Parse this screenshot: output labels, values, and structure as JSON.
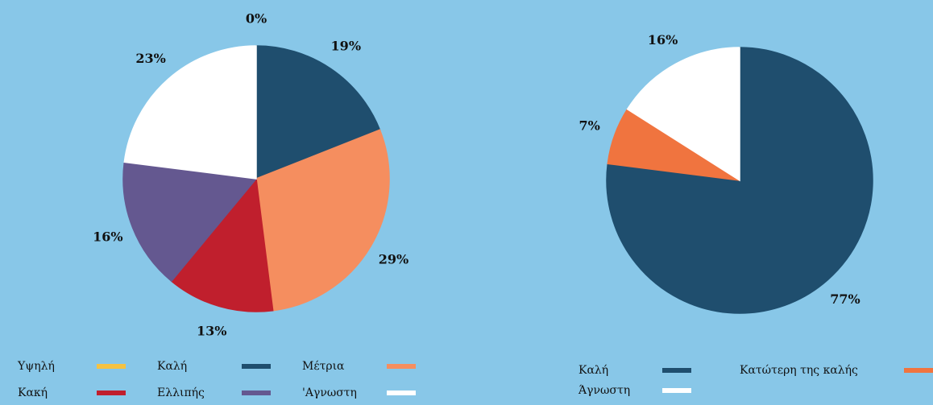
{
  "chart_data": [
    {
      "type": "pie",
      "categories": [
        "Υψηλή",
        "Καλή",
        "Μέτρια",
        "Κακή",
        "Ελλιπής",
        "'Αγνωστη"
      ],
      "values": [
        0,
        19,
        29,
        13,
        16,
        23
      ],
      "value_labels": [
        "0%",
        "19%",
        "29%",
        "13%",
        "16%",
        "23%"
      ],
      "colors": [
        "#f5c242",
        "#1f4e6e",
        "#f58e5f",
        "#c01f2d",
        "#645890",
        "#ffffff"
      ]
    },
    {
      "type": "pie",
      "categories": [
        "Καλή",
        "Κατώτερη της καλής",
        "Άγνωστη"
      ],
      "values": [
        77,
        7,
        16
      ],
      "value_labels": [
        "77%",
        "7%",
        "16%"
      ],
      "colors": [
        "#1f4e6e",
        "#f0743f",
        "#ffffff"
      ]
    }
  ]
}
